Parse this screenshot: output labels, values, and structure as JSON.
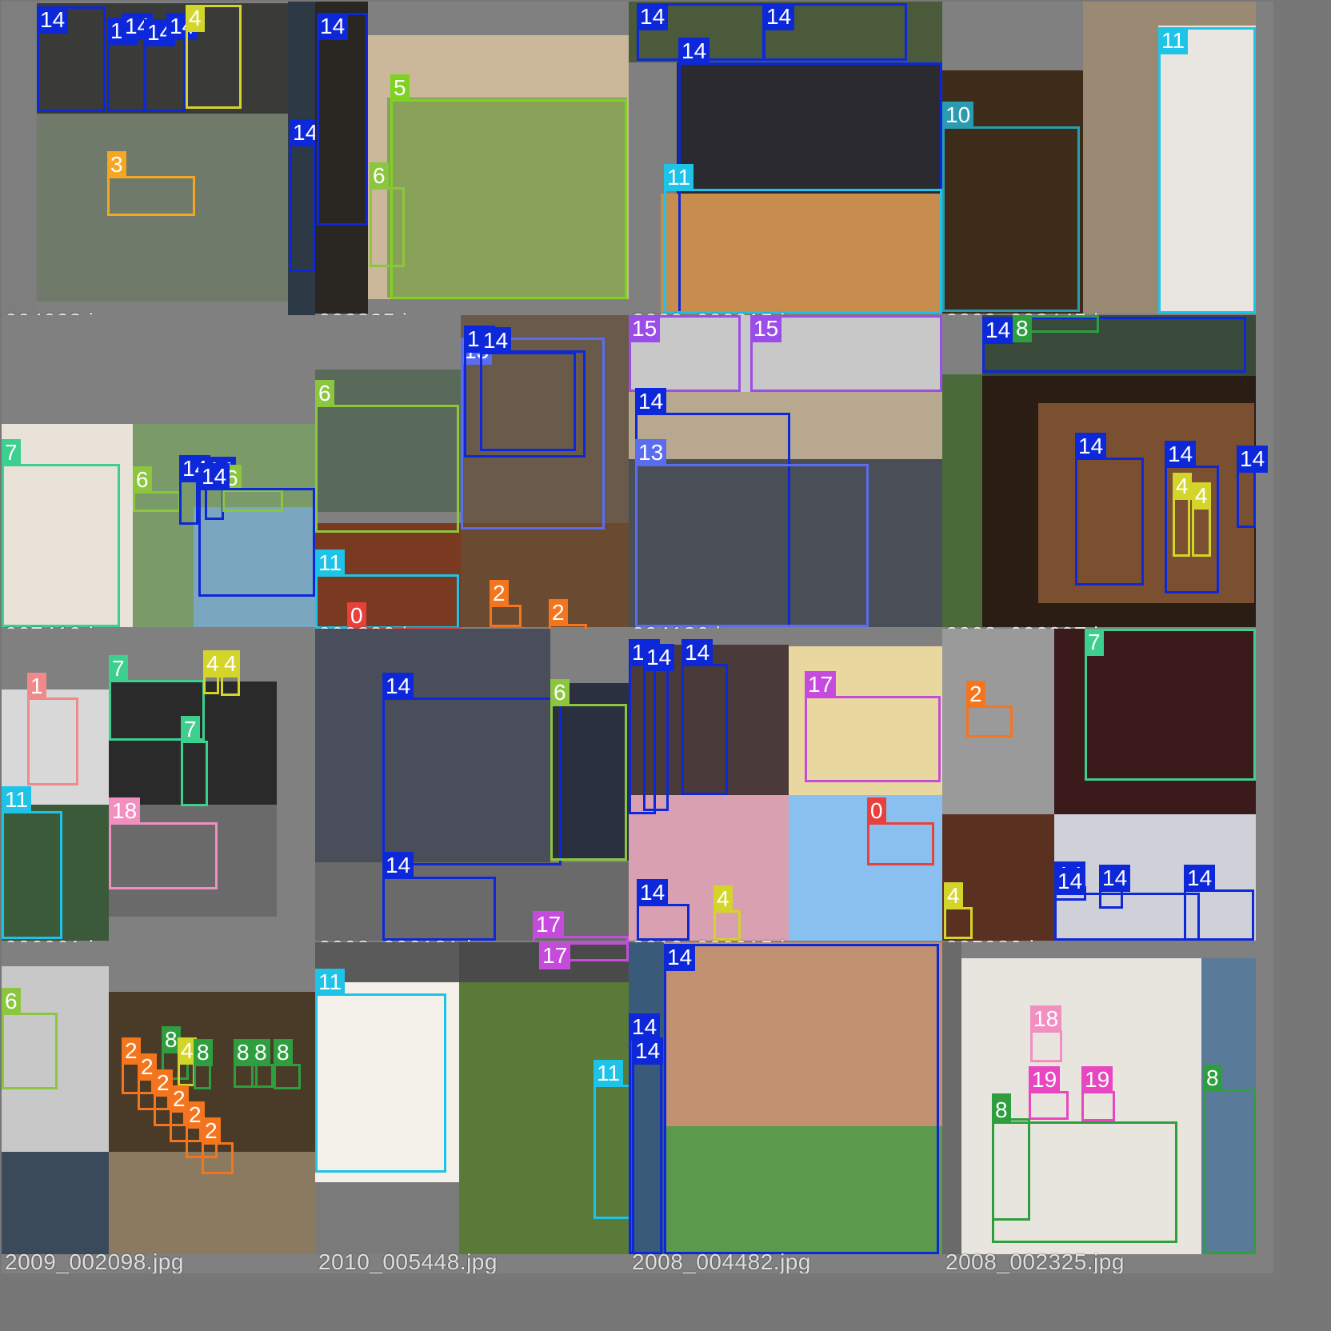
{
  "classes": {
    "0": {
      "color": "#e8413c"
    },
    "1": {
      "color": "#f08a8a"
    },
    "2": {
      "color": "#f5751e"
    },
    "3": {
      "color": "#f5a623"
    },
    "4": {
      "color": "#d4d52a"
    },
    "5": {
      "color": "#7ed321"
    },
    "6": {
      "color": "#8cc63f"
    },
    "7": {
      "color": "#3ccf8e"
    },
    "8": {
      "color": "#2e9e3f"
    },
    "10": {
      "color": "#2a9bb0"
    },
    "11": {
      "color": "#1ec3e8"
    },
    "13": {
      "color": "#5a6df0"
    },
    "14": {
      "color": "#0d28d8"
    },
    "15": {
      "color": "#9b4de8"
    },
    "17": {
      "color": "#c64bdc"
    },
    "18": {
      "color": "#f08fc0"
    },
    "19": {
      "color": "#e847c0"
    }
  },
  "tiles": [
    {
      "id": "t1",
      "filename": "004023.jpg",
      "boxes": [
        {
          "label": "14"
        },
        {
          "label": "14"
        },
        {
          "label": "14"
        },
        {
          "label": "14"
        },
        {
          "label": "14"
        },
        {
          "label": "4"
        },
        {
          "label": "3"
        },
        {
          "label": "14"
        }
      ]
    },
    {
      "id": "t2",
      "filename": "002835.jpg",
      "boxes": [
        {
          "label": "14"
        },
        {
          "label": "5"
        },
        {
          "label": "6"
        }
      ]
    },
    {
      "id": "t3",
      "filename": "2009_000015.jpg",
      "boxes": [
        {
          "label": "14"
        },
        {
          "label": "14"
        },
        {
          "label": "14"
        },
        {
          "label": "11"
        }
      ]
    },
    {
      "id": "t4",
      "filename": "2009_003445.jpg",
      "boxes": [
        {
          "label": "11"
        },
        {
          "label": "10"
        }
      ]
    },
    {
      "id": "t5",
      "filename": "007419.jpg",
      "boxes": [
        {
          "label": "7"
        },
        {
          "label": "6"
        },
        {
          "label": "14"
        },
        {
          "label": "14"
        },
        {
          "label": "6"
        },
        {
          "label": "14"
        }
      ]
    },
    {
      "id": "t6",
      "filename": "000380.jpg",
      "boxes": [
        {
          "label": "6"
        },
        {
          "label": "13"
        },
        {
          "label": "14"
        },
        {
          "label": "14"
        },
        {
          "label": "11"
        },
        {
          "label": "0"
        },
        {
          "label": "2"
        },
        {
          "label": "2"
        }
      ]
    },
    {
      "id": "t7",
      "filename": "004136.jpg",
      "boxes": [
        {
          "label": "15"
        },
        {
          "label": "15"
        },
        {
          "label": "14"
        },
        {
          "label": "13"
        }
      ]
    },
    {
      "id": "t8",
      "filename": "2008_002807.jpg",
      "boxes": [
        {
          "label": "14"
        },
        {
          "label": "8"
        },
        {
          "label": "14"
        },
        {
          "label": "14"
        },
        {
          "label": "4"
        },
        {
          "label": "4"
        },
        {
          "label": "14"
        }
      ]
    },
    {
      "id": "t9",
      "filename": "006061.jpg",
      "boxes": [
        {
          "label": "1"
        },
        {
          "label": "7"
        },
        {
          "label": "4"
        },
        {
          "label": "4"
        },
        {
          "label": "7"
        },
        {
          "label": "11"
        },
        {
          "label": "18"
        }
      ]
    },
    {
      "id": "t10",
      "filename": "2008_006181.jpg",
      "boxes": [
        {
          "label": "14"
        },
        {
          "label": "6"
        },
        {
          "label": "14"
        },
        {
          "label": "17"
        }
      ]
    },
    {
      "id": "t11",
      "filename": "2010_000915.jpg",
      "boxes": [
        {
          "label": "14"
        },
        {
          "label": "14"
        },
        {
          "label": "14"
        },
        {
          "label": "17"
        },
        {
          "label": "0"
        },
        {
          "label": "14"
        },
        {
          "label": "4"
        },
        {
          "label": "14"
        }
      ]
    },
    {
      "id": "t12",
      "filename": "005980.jpg",
      "boxes": [
        {
          "label": "7"
        },
        {
          "label": "2"
        },
        {
          "label": "4"
        },
        {
          "label": "14"
        },
        {
          "label": "14"
        },
        {
          "label": "14"
        },
        {
          "label": "14"
        }
      ]
    },
    {
      "id": "t13",
      "filename": "2009_002098.jpg",
      "boxes": [
        {
          "label": "6"
        },
        {
          "label": "8"
        },
        {
          "label": "4"
        },
        {
          "label": "8"
        },
        {
          "label": "8"
        },
        {
          "label": "8"
        },
        {
          "label": "8"
        },
        {
          "label": "2"
        },
        {
          "label": "2"
        },
        {
          "label": "2"
        },
        {
          "label": "2"
        },
        {
          "label": "2"
        },
        {
          "label": "2"
        }
      ]
    },
    {
      "id": "t14",
      "filename": "2010_005448.jpg",
      "boxes": [
        {
          "label": "17"
        },
        {
          "label": "11"
        },
        {
          "label": "11"
        }
      ]
    },
    {
      "id": "t15",
      "filename": "2008_004482.jpg",
      "boxes": [
        {
          "label": "14"
        },
        {
          "label": "14"
        },
        {
          "label": "14"
        }
      ]
    },
    {
      "id": "t16",
      "filename": "2008_002325.jpg",
      "boxes": [
        {
          "label": "19"
        },
        {
          "label": "19"
        },
        {
          "label": "8"
        },
        {
          "label": "8"
        },
        {
          "label": "8"
        },
        {
          "label": "18"
        }
      ]
    }
  ]
}
